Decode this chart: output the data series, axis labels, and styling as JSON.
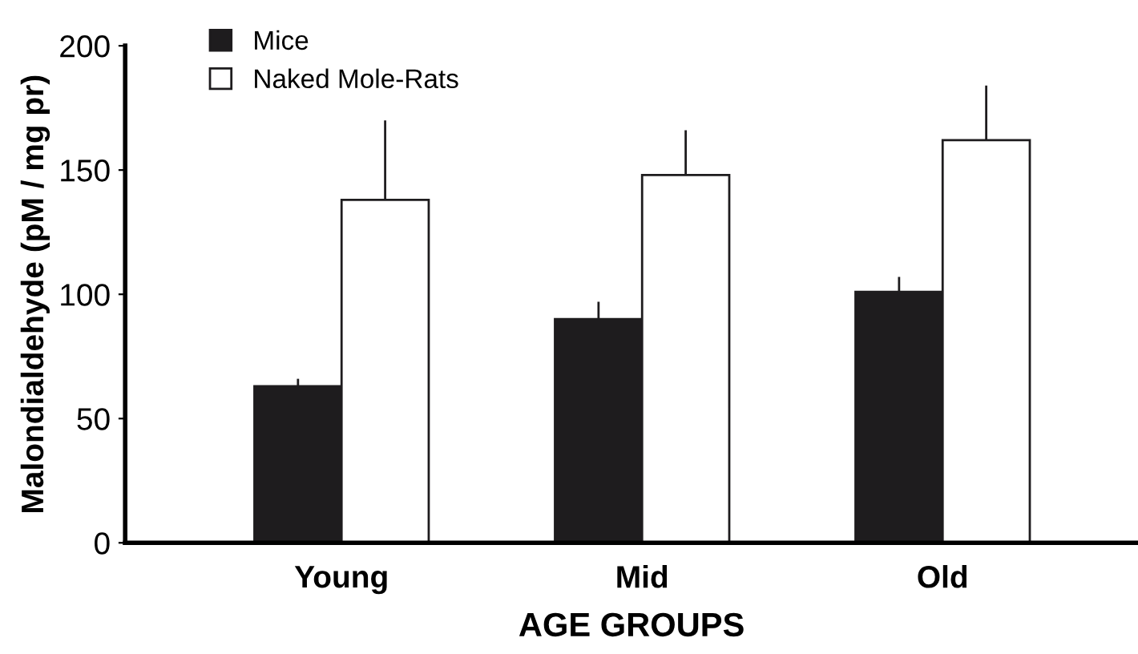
{
  "chart_data": {
    "type": "bar",
    "xlabel": "AGE GROUPS",
    "ylabel": "Malondialdehyde (pM / mg pr)",
    "categories": [
      "Young",
      "Mid",
      "Old"
    ],
    "series": [
      {
        "name": "Mice",
        "color": "#1e1c1e",
        "values": [
          63,
          90,
          101
        ],
        "errors": [
          [
            63,
            66
          ],
          [
            90,
            97
          ],
          [
            101,
            107
          ]
        ]
      },
      {
        "name": "Naked Mole-Rats",
        "color": "#ffffff",
        "values": [
          138,
          148,
          162
        ],
        "errors": [
          [
            138,
            170
          ],
          [
            148,
            166
          ],
          [
            162,
            184
          ]
        ]
      }
    ],
    "ylim": [
      0,
      200
    ],
    "yticks": [
      0,
      50,
      100,
      150,
      200
    ],
    "grid": false,
    "legend": "top left"
  }
}
